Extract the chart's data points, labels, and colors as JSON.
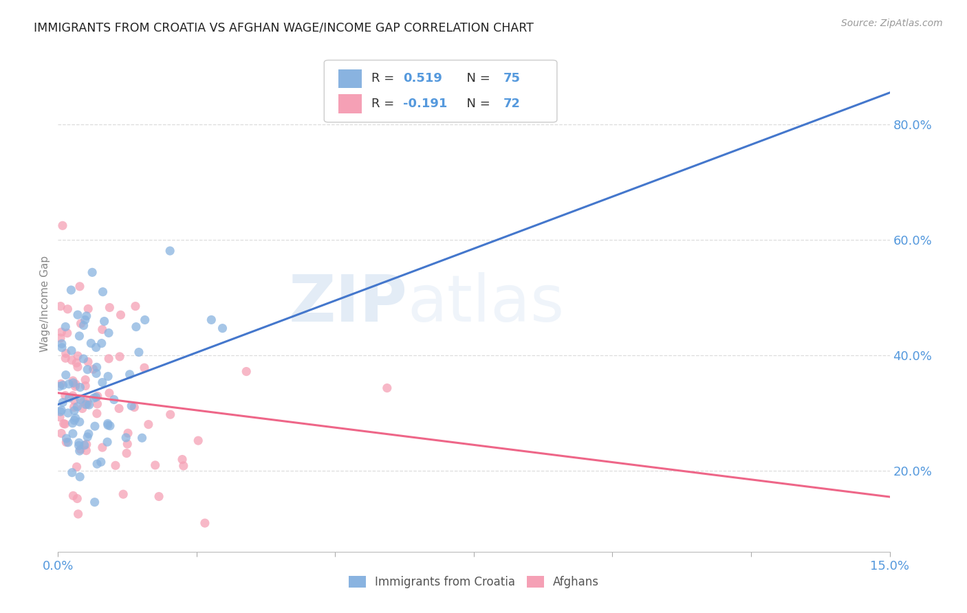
{
  "title": "IMMIGRANTS FROM CROATIA VS AFGHAN WAGE/INCOME GAP CORRELATION CHART",
  "source": "Source: ZipAtlas.com",
  "ylabel": "Wage/Income Gap",
  "xmin": 0.0,
  "xmax": 0.15,
  "ymin": 0.06,
  "ymax": 0.92,
  "yticks": [
    0.2,
    0.4,
    0.6,
    0.8
  ],
  "ytick_labels": [
    "20.0%",
    "40.0%",
    "60.0%",
    "80.0%"
  ],
  "xticks": [
    0.0,
    0.025,
    0.05,
    0.075,
    0.1,
    0.125,
    0.15
  ],
  "xtick_labels": [
    "0.0%",
    "",
    "",
    "",
    "",
    "",
    "15.0%"
  ],
  "croatia_R": 0.519,
  "croatia_N": 75,
  "afghan_R": -0.191,
  "afghan_N": 72,
  "blue_color": "#89B3E0",
  "pink_color": "#F5A0B5",
  "blue_line_color": "#4477CC",
  "pink_line_color": "#EE6688",
  "axis_label_color": "#5599DD",
  "title_color": "#222222",
  "legend_label_croatia": "Immigrants from Croatia",
  "legend_label_afghans": "Afghans",
  "watermark_zip": "ZIP",
  "watermark_atlas": "atlas",
  "background_color": "#ffffff",
  "grid_color": "#dddddd",
  "blue_trend_y0": 0.315,
  "blue_trend_y1": 0.855,
  "pink_trend_y0": 0.335,
  "pink_trend_y1": 0.155
}
